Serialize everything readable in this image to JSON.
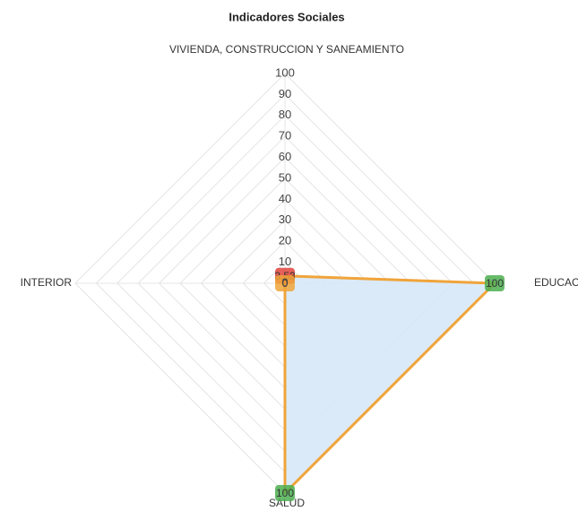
{
  "chart_data": {
    "type": "radar",
    "title": "Indicadores Sociales",
    "categories": [
      "VIVIENDA, CONSTRUCCION Y SANEAMIENTO",
      "EDUCACION",
      "SALUD",
      "INTERIOR"
    ],
    "series": [
      {
        "color": "#f0a43a",
        "fill": "#d7e8f8",
        "values": [
          3.53,
          100,
          100,
          0
        ],
        "label_colors": [
          "#e0443c",
          "#4caf50",
          "#4caf50",
          "#f0a43a"
        ]
      }
    ],
    "rlim": [
      0,
      100
    ],
    "rticks": [
      0,
      10,
      20,
      30,
      40,
      50,
      60,
      70,
      80,
      90,
      100
    ],
    "grid": true
  }
}
